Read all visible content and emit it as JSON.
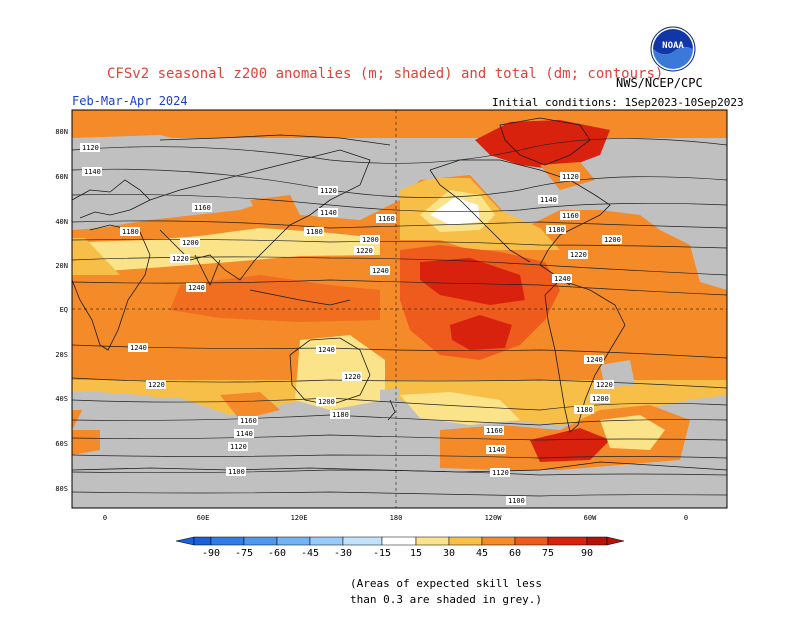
{
  "header": {
    "title": "CFSv2 seasonal z200 anomalies (m; shaded) and total (dm; contours)",
    "agency": "NWS/NCEP/CPC",
    "period": "Feb-Mar-Apr 2024",
    "initial_conditions": "Initial conditions: 1Sep2023-10Sep2023",
    "logo_text": "NOAA"
  },
  "map": {
    "lat_labels": [
      "80N",
      "60N",
      "40N",
      "20N",
      "EQ",
      "20S",
      "40S",
      "60S",
      "80S"
    ],
    "lon_labels": [
      "0",
      "60E",
      "120E",
      "180",
      "120W",
      "60W",
      "0"
    ],
    "contour_labels": [
      "1100",
      "1120",
      "1140",
      "1160",
      "1180",
      "1200",
      "1220",
      "1240"
    ]
  },
  "legend": {
    "levels": [
      "-90",
      "-75",
      "-60",
      "-45",
      "-30",
      "-15",
      "15",
      "30",
      "45",
      "60",
      "75",
      "90"
    ],
    "colors": [
      "#1a5fdc",
      "#2f7ee8",
      "#4e98f0",
      "#72b2f6",
      "#98cbfb",
      "#c0e2fd",
      "#ffffff",
      "#fbe38a",
      "#f8bf48",
      "#f48a28",
      "#ee5b1c",
      "#d8220e",
      "#b81208"
    ]
  },
  "footnote": {
    "line1": "(Areas of expected skill less",
    "line2": "than 0.3 are shaded in grey.)"
  }
}
